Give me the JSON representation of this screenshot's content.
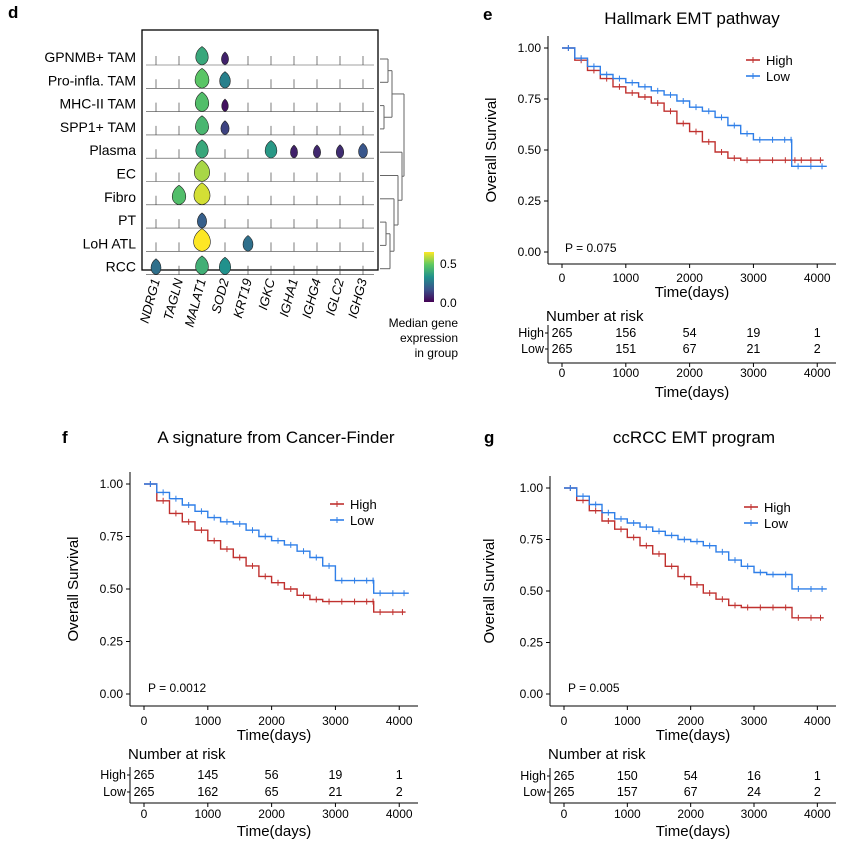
{
  "colors": {
    "high": "#C0312F",
    "low": "#2F7FE8"
  },
  "violin_panel": {
    "letter": "d",
    "cell_types": [
      "GPNMB+ TAM",
      "Pro-infla. TAM",
      "MHC-II TAM",
      "SPP1+ TAM",
      "Plasma",
      "EC",
      "Fibro",
      "PT",
      "LoH ATL",
      "RCC"
    ],
    "genes": [
      "NDRG1",
      "TAGLN",
      "MALAT1",
      "SOD2",
      "KRT19",
      "IGKC",
      "IGHA1",
      "IGHG4",
      "IGLC2",
      "IGHG3"
    ],
    "medians": [
      [
        0.0,
        0.0,
        0.36,
        0.06,
        0.0,
        0.0,
        0.0,
        0.0,
        0.0,
        0.0
      ],
      [
        0.0,
        0.0,
        0.44,
        0.26,
        0.0,
        0.0,
        0.0,
        0.0,
        0.0,
        0.0
      ],
      [
        0.0,
        0.0,
        0.42,
        0.03,
        0.0,
        0.0,
        0.0,
        0.0,
        0.0,
        0.0
      ],
      [
        0.0,
        0.0,
        0.4,
        0.12,
        0.0,
        0.0,
        0.0,
        0.0,
        0.0,
        0.0
      ],
      [
        0.0,
        0.0,
        0.36,
        0.0,
        0.0,
        0.32,
        0.06,
        0.07,
        0.08,
        0.16
      ],
      [
        0.0,
        0.0,
        0.52,
        0.0,
        0.0,
        0.0,
        0.0,
        0.0,
        0.0,
        0.0
      ],
      [
        0.0,
        0.42,
        0.56,
        0.0,
        0.0,
        0.0,
        0.0,
        0.0,
        0.0,
        0.0
      ],
      [
        0.0,
        0.0,
        0.18,
        0.0,
        0.0,
        0.0,
        0.0,
        0.0,
        0.0,
        0.0
      ],
      [
        0.0,
        0.0,
        0.6,
        0.0,
        0.22,
        0.0,
        0.0,
        0.0,
        0.0,
        0.0
      ],
      [
        0.22,
        0.0,
        0.38,
        0.3,
        0.0,
        0.0,
        0.0,
        0.0,
        0.0,
        0.0
      ]
    ],
    "colorbar": {
      "ticks": [
        "0.5",
        "0.0"
      ],
      "label": [
        "Median gene",
        "expression",
        "in group"
      ],
      "range": [
        0,
        0.6
      ]
    }
  },
  "chart_data": [
    {
      "type": "line",
      "panel": "e",
      "title": "Hallmark EMT pathway",
      "xlabel": "Time(days)",
      "ylabel": "Overall Survival",
      "xlim": [
        0,
        4200
      ],
      "ylim": [
        0,
        1
      ],
      "xticks": [
        "0",
        "1000",
        "2000",
        "3000",
        "4000"
      ],
      "yticks": [
        "0.00",
        "0.25",
        "0.50",
        "0.75",
        "1.00"
      ],
      "pvalue": "P = 0.075",
      "series": [
        {
          "name": "High",
          "x": [
            0,
            200,
            400,
            600,
            800,
            1000,
            1200,
            1400,
            1600,
            1800,
            2000,
            2200,
            2400,
            2600,
            2800,
            3000,
            3200,
            3400,
            3600,
            3700,
            3800,
            4000,
            4100
          ],
          "y": [
            1.0,
            0.94,
            0.89,
            0.85,
            0.81,
            0.78,
            0.76,
            0.73,
            0.69,
            0.63,
            0.59,
            0.54,
            0.49,
            0.46,
            0.45,
            0.45,
            0.45,
            0.45,
            0.45,
            0.45,
            0.45,
            0.45,
            0.45
          ]
        },
        {
          "name": "Low",
          "x": [
            0,
            200,
            400,
            600,
            800,
            1000,
            1200,
            1400,
            1600,
            1800,
            2000,
            2200,
            2400,
            2600,
            2800,
            3000,
            3200,
            3400,
            3580,
            3600,
            3800,
            4000,
            4150
          ],
          "y": [
            1.0,
            0.95,
            0.91,
            0.87,
            0.85,
            0.83,
            0.81,
            0.79,
            0.77,
            0.74,
            0.71,
            0.69,
            0.66,
            0.62,
            0.58,
            0.55,
            0.55,
            0.55,
            0.55,
            0.42,
            0.42,
            0.42,
            0.42
          ]
        }
      ],
      "risk_table": {
        "title": "Number at risk",
        "rows": [
          {
            "label": "High",
            "values": [
              "265",
              "156",
              "54",
              "19",
              "1"
            ]
          },
          {
            "label": "Low",
            "values": [
              "265",
              "151",
              "67",
              "21",
              "2"
            ]
          }
        ]
      }
    },
    {
      "type": "line",
      "panel": "f",
      "title": "A signature from Cancer-Finder",
      "xlabel": "Time(days)",
      "ylabel": "Overall Survival",
      "xlim": [
        0,
        4200
      ],
      "ylim": [
        0,
        1
      ],
      "xticks": [
        "0",
        "1000",
        "2000",
        "3000",
        "4000"
      ],
      "yticks": [
        "0.00",
        "0.25",
        "0.50",
        "0.75",
        "1.00"
      ],
      "pvalue": "P = 0.0012",
      "series": [
        {
          "name": "High",
          "x": [
            0,
            200,
            400,
            600,
            800,
            1000,
            1200,
            1400,
            1600,
            1800,
            2000,
            2200,
            2400,
            2600,
            2800,
            3000,
            3200,
            3400,
            3580,
            3600,
            3800,
            4000,
            4100
          ],
          "y": [
            1.0,
            0.92,
            0.86,
            0.82,
            0.78,
            0.73,
            0.69,
            0.65,
            0.61,
            0.56,
            0.53,
            0.5,
            0.47,
            0.45,
            0.44,
            0.44,
            0.44,
            0.44,
            0.44,
            0.39,
            0.39,
            0.39,
            0.39
          ]
        },
        {
          "name": "Low",
          "x": [
            0,
            200,
            400,
            600,
            800,
            1000,
            1200,
            1400,
            1600,
            1800,
            2000,
            2200,
            2400,
            2600,
            2800,
            3000,
            3200,
            3400,
            3580,
            3600,
            3800,
            4000,
            4150
          ],
          "y": [
            1.0,
            0.96,
            0.93,
            0.9,
            0.87,
            0.84,
            0.82,
            0.81,
            0.78,
            0.75,
            0.73,
            0.71,
            0.68,
            0.65,
            0.61,
            0.54,
            0.54,
            0.54,
            0.54,
            0.48,
            0.48,
            0.48,
            0.48
          ]
        }
      ],
      "risk_table": {
        "title": "Number at risk",
        "rows": [
          {
            "label": "High",
            "values": [
              "265",
              "145",
              "56",
              "19",
              "1"
            ]
          },
          {
            "label": "Low",
            "values": [
              "265",
              "162",
              "65",
              "21",
              "2"
            ]
          }
        ]
      }
    },
    {
      "type": "line",
      "panel": "g",
      "title": "ccRCC EMT program",
      "xlabel": "Time(days)",
      "ylabel": "Overall Survival",
      "xlim": [
        0,
        4200
      ],
      "ylim": [
        0,
        1
      ],
      "xticks": [
        "0",
        "1000",
        "2000",
        "3000",
        "4000"
      ],
      "yticks": [
        "0.00",
        "0.25",
        "0.50",
        "0.75",
        "1.00"
      ],
      "pvalue": "P = 0.005",
      "series": [
        {
          "name": "High",
          "x": [
            0,
            200,
            400,
            600,
            800,
            1000,
            1200,
            1400,
            1600,
            1800,
            2000,
            2200,
            2400,
            2600,
            2800,
            3000,
            3200,
            3400,
            3600,
            3800,
            4000,
            4100
          ],
          "y": [
            1.0,
            0.94,
            0.89,
            0.84,
            0.8,
            0.76,
            0.72,
            0.68,
            0.62,
            0.57,
            0.53,
            0.49,
            0.46,
            0.43,
            0.42,
            0.42,
            0.42,
            0.42,
            0.37,
            0.37,
            0.37,
            0.37
          ]
        },
        {
          "name": "Low",
          "x": [
            0,
            200,
            400,
            600,
            800,
            1000,
            1200,
            1400,
            1600,
            1800,
            2000,
            2200,
            2400,
            2600,
            2800,
            3000,
            3200,
            3400,
            3600,
            3800,
            4000,
            4150
          ],
          "y": [
            1.0,
            0.96,
            0.92,
            0.88,
            0.85,
            0.83,
            0.81,
            0.79,
            0.77,
            0.75,
            0.74,
            0.72,
            0.69,
            0.65,
            0.62,
            0.59,
            0.58,
            0.58,
            0.51,
            0.51,
            0.51,
            0.51
          ]
        }
      ],
      "risk_table": {
        "title": "Number at risk",
        "rows": [
          {
            "label": "High",
            "values": [
              "265",
              "150",
              "54",
              "16",
              "1"
            ]
          },
          {
            "label": "Low",
            "values": [
              "265",
              "157",
              "67",
              "24",
              "2"
            ]
          }
        ]
      }
    }
  ]
}
